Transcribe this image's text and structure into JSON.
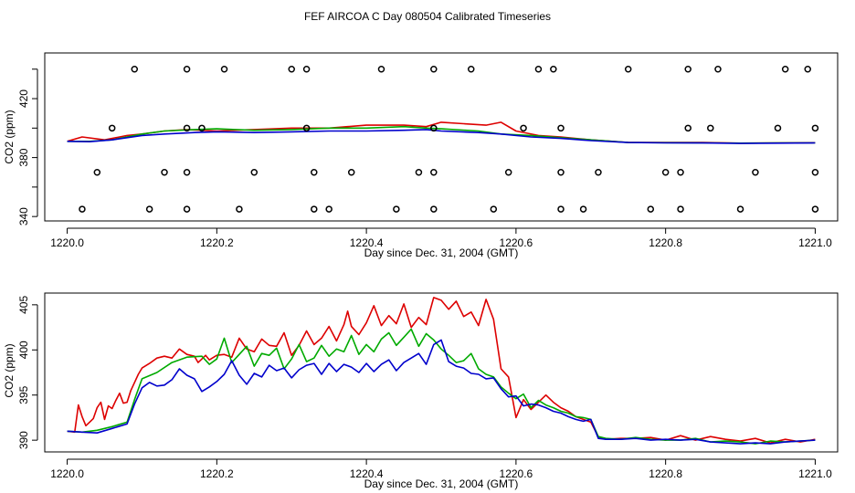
{
  "figure_title": "FEF AIRCOA C  Day 080504  Calibrated Timeseries",
  "chart_data": [
    {
      "type": "line",
      "title": "FEF AIRCOA C  Day 080504  Calibrated Timeseries",
      "xlabel": "Day since Dec. 31, 2004 (GMT)",
      "ylabel": "CO2 (ppm)",
      "xlim": [
        1219.97,
        1221.03
      ],
      "ylim": [
        337,
        451
      ],
      "xticks": [
        1220.0,
        1220.2,
        1220.4,
        1220.6,
        1220.8,
        1221.0
      ],
      "xtick_labels": [
        "1220.0",
        "1220.2",
        "1220.4",
        "1220.6",
        "1220.8",
        "1221.0"
      ],
      "yticks": [
        340,
        380,
        420
      ],
      "ytick_labels": [
        "340",
        "380",
        "420"
      ],
      "extra_ytick_positions": [
        360,
        400,
        440
      ],
      "grid": false,
      "series": [
        {
          "name": "red",
          "color": "#dd0000",
          "x": [
            1220.0,
            1220.02,
            1220.05,
            1220.08,
            1220.1,
            1220.13,
            1220.16,
            1220.2,
            1220.25,
            1220.3,
            1220.35,
            1220.4,
            1220.45,
            1220.48,
            1220.5,
            1220.53,
            1220.56,
            1220.58,
            1220.6,
            1220.63,
            1220.66,
            1220.7,
            1220.75,
            1220.8,
            1220.85,
            1220.9,
            1220.95,
            1221.0
          ],
          "values": [
            391,
            394,
            392,
            395,
            396,
            398,
            399,
            398,
            399,
            400,
            400,
            402,
            402,
            401,
            404,
            403,
            402,
            404,
            398,
            395,
            394,
            392,
            390.3,
            390.2,
            390.3,
            389.8,
            389.9,
            390.1
          ]
        },
        {
          "name": "green",
          "color": "#00aa00",
          "x": [
            1220.0,
            1220.03,
            1220.06,
            1220.1,
            1220.13,
            1220.17,
            1220.2,
            1220.25,
            1220.3,
            1220.35,
            1220.4,
            1220.45,
            1220.48,
            1220.5,
            1220.55,
            1220.58,
            1220.62,
            1220.66,
            1220.7,
            1220.75,
            1220.8,
            1220.85,
            1220.9,
            1220.95,
            1221.0
          ],
          "values": [
            391,
            391,
            392,
            396,
            398,
            399,
            399.5,
            398.5,
            399,
            400,
            400,
            401,
            400,
            399.5,
            398,
            396,
            395,
            393.5,
            392,
            390.2,
            390.1,
            390.0,
            389.8,
            389.9,
            390.0
          ]
        },
        {
          "name": "blue",
          "color": "#0000cc",
          "x": [
            1220.0,
            1220.03,
            1220.06,
            1220.1,
            1220.13,
            1220.17,
            1220.2,
            1220.25,
            1220.3,
            1220.35,
            1220.4,
            1220.45,
            1220.48,
            1220.5,
            1220.55,
            1220.58,
            1220.62,
            1220.66,
            1220.7,
            1220.75,
            1220.8,
            1220.85,
            1220.9,
            1220.95,
            1221.0
          ],
          "values": [
            391,
            390.8,
            392,
            395,
            396,
            397,
            397.5,
            397,
            397.5,
            398,
            398,
            398.5,
            399,
            398,
            397,
            396,
            394,
            393,
            391.5,
            390.2,
            390.0,
            389.9,
            389.6,
            389.8,
            390.0
          ]
        }
      ],
      "markers": {
        "style": "open-circle",
        "x_440": [
          1220.09,
          1220.16,
          1220.21,
          1220.3,
          1220.32,
          1220.42,
          1220.49,
          1220.54,
          1220.63,
          1220.65,
          1220.75,
          1220.83,
          1220.87,
          1220.96,
          1220.99
        ],
        "x_400": [
          1220.06,
          1220.16,
          1220.18,
          1220.32,
          1220.49,
          1220.61,
          1220.66,
          1220.83,
          1220.86,
          1220.95,
          1221.0
        ],
        "x_370": [
          1220.04,
          1220.13,
          1220.16,
          1220.25,
          1220.33,
          1220.38,
          1220.47,
          1220.49,
          1220.59,
          1220.66,
          1220.71,
          1220.8,
          1220.82,
          1220.92,
          1221.0
        ],
        "x_345": [
          1220.02,
          1220.11,
          1220.16,
          1220.23,
          1220.33,
          1220.35,
          1220.44,
          1220.49,
          1220.57,
          1220.66,
          1220.69,
          1220.78,
          1220.82,
          1220.9,
          1221.0
        ]
      }
    },
    {
      "type": "line",
      "title": "",
      "xlabel": "Day since Dec. 31, 2004 (GMT)",
      "ylabel": "CO2 (ppm)",
      "xlim": [
        1219.97,
        1221.03
      ],
      "ylim": [
        388.7,
        406.3
      ],
      "xticks": [
        1220.0,
        1220.2,
        1220.4,
        1220.6,
        1220.8,
        1221.0
      ],
      "xtick_labels": [
        "1220.0",
        "1220.2",
        "1220.4",
        "1220.6",
        "1220.8",
        "1221.0"
      ],
      "yticks": [
        390,
        395,
        400,
        405
      ],
      "ytick_labels": [
        "390",
        "395",
        "400",
        "405"
      ],
      "grid": false,
      "series": [
        {
          "name": "red",
          "color": "#dd0000",
          "x": [
            1220.0,
            1220.01,
            1220.015,
            1220.02,
            1220.025,
            1220.03,
            1220.035,
            1220.04,
            1220.045,
            1220.05,
            1220.055,
            1220.06,
            1220.065,
            1220.07,
            1220.075,
            1220.08,
            1220.085,
            1220.09,
            1220.095,
            1220.1,
            1220.11,
            1220.12,
            1220.13,
            1220.14,
            1220.15,
            1220.16,
            1220.17,
            1220.175,
            1220.18,
            1220.185,
            1220.19,
            1220.2,
            1220.21,
            1220.22,
            1220.23,
            1220.24,
            1220.25,
            1220.26,
            1220.27,
            1220.28,
            1220.29,
            1220.3,
            1220.31,
            1220.32,
            1220.33,
            1220.34,
            1220.35,
            1220.36,
            1220.37,
            1220.375,
            1220.38,
            1220.39,
            1220.4,
            1220.41,
            1220.42,
            1220.43,
            1220.44,
            1220.45,
            1220.46,
            1220.47,
            1220.48,
            1220.49,
            1220.5,
            1220.51,
            1220.52,
            1220.53,
            1220.54,
            1220.55,
            1220.56,
            1220.57,
            1220.58,
            1220.59,
            1220.6,
            1220.61,
            1220.62,
            1220.63,
            1220.64,
            1220.65,
            1220.66,
            1220.67,
            1220.68,
            1220.69,
            1220.7,
            1220.71,
            1220.72,
            1220.74,
            1220.76,
            1220.78,
            1220.8,
            1220.82,
            1220.84,
            1220.86,
            1220.88,
            1220.9,
            1220.92,
            1220.94,
            1220.96,
            1220.98,
            1221.0
          ],
          "values": [
            391.0,
            390.9,
            393.9,
            392.6,
            391.6,
            392.0,
            392.4,
            393.6,
            394.2,
            392.3,
            393.8,
            393.5,
            394.4,
            395.2,
            394.1,
            394.2,
            395.5,
            396.4,
            397.3,
            398.0,
            398.5,
            399.1,
            399.3,
            399.1,
            400.1,
            399.5,
            399.3,
            398.6,
            399.0,
            399.4,
            398.9,
            399.4,
            399.5,
            399.2,
            401.3,
            400.1,
            399.8,
            401.2,
            400.5,
            400.4,
            401.9,
            399.4,
            400.5,
            402.1,
            400.6,
            401.3,
            402.6,
            401.0,
            402.8,
            404.3,
            402.6,
            401.7,
            403.0,
            404.9,
            402.7,
            403.8,
            402.9,
            405.1,
            402.5,
            403.6,
            402.8,
            405.8,
            405.5,
            404.5,
            405.4,
            403.7,
            404.2,
            402.7,
            405.6,
            403.4,
            397.9,
            397.0,
            392.5,
            394.5,
            393.4,
            394.2,
            395.0,
            394.2,
            393.6,
            393.2,
            392.6,
            392.3,
            392.0,
            390.4,
            390.1,
            390.2,
            390.2,
            390.3,
            390.0,
            390.5,
            390.0,
            390.4,
            390.1,
            389.9,
            390.2,
            389.7,
            390.1,
            389.8,
            390.1
          ]
        },
        {
          "name": "green",
          "color": "#00aa00",
          "x": [
            1220.0,
            1220.02,
            1220.04,
            1220.06,
            1220.08,
            1220.09,
            1220.1,
            1220.12,
            1220.14,
            1220.16,
            1220.18,
            1220.19,
            1220.2,
            1220.21,
            1220.22,
            1220.23,
            1220.24,
            1220.25,
            1220.26,
            1220.27,
            1220.28,
            1220.29,
            1220.3,
            1220.31,
            1220.32,
            1220.33,
            1220.34,
            1220.35,
            1220.36,
            1220.37,
            1220.38,
            1220.39,
            1220.4,
            1220.41,
            1220.42,
            1220.43,
            1220.44,
            1220.45,
            1220.46,
            1220.47,
            1220.48,
            1220.49,
            1220.5,
            1220.51,
            1220.52,
            1220.53,
            1220.54,
            1220.55,
            1220.56,
            1220.57,
            1220.58,
            1220.59,
            1220.6,
            1220.61,
            1220.62,
            1220.63,
            1220.64,
            1220.65,
            1220.66,
            1220.67,
            1220.68,
            1220.69,
            1220.7,
            1220.71,
            1220.72,
            1220.74,
            1220.76,
            1220.78,
            1220.8,
            1220.82,
            1220.84,
            1220.86,
            1220.88,
            1220.9,
            1220.92,
            1220.94,
            1220.96,
            1220.98,
            1221.0
          ],
          "values": [
            391.0,
            390.9,
            391.1,
            391.5,
            392.0,
            394.5,
            396.8,
            397.5,
            398.6,
            399.2,
            399.3,
            398.4,
            399.0,
            401.3,
            398.6,
            399.5,
            400.4,
            398.2,
            399.6,
            399.4,
            400.2,
            397.9,
            399.0,
            400.6,
            398.7,
            399.1,
            400.5,
            399.3,
            400.1,
            399.8,
            401.6,
            399.5,
            400.6,
            399.8,
            401.2,
            401.9,
            400.5,
            401.4,
            402.3,
            400.4,
            401.8,
            401.1,
            400.1,
            399.4,
            398.6,
            398.8,
            399.6,
            397.9,
            397.3,
            397.0,
            395.9,
            395.2,
            394.6,
            395.1,
            393.6,
            394.4,
            393.9,
            393.6,
            393.2,
            393.0,
            392.6,
            392.5,
            392.3,
            390.4,
            390.2,
            390.1,
            390.3,
            390.1,
            390.0,
            390.0,
            390.2,
            389.8,
            389.9,
            389.8,
            389.6,
            389.9,
            389.8,
            389.9,
            390.0
          ]
        },
        {
          "name": "blue",
          "color": "#0000cc",
          "x": [
            1220.0,
            1220.02,
            1220.04,
            1220.06,
            1220.08,
            1220.09,
            1220.1,
            1220.11,
            1220.12,
            1220.13,
            1220.14,
            1220.15,
            1220.16,
            1220.17,
            1220.18,
            1220.19,
            1220.2,
            1220.21,
            1220.22,
            1220.23,
            1220.24,
            1220.25,
            1220.26,
            1220.27,
            1220.28,
            1220.29,
            1220.3,
            1220.31,
            1220.32,
            1220.33,
            1220.34,
            1220.35,
            1220.36,
            1220.37,
            1220.38,
            1220.39,
            1220.4,
            1220.41,
            1220.42,
            1220.43,
            1220.44,
            1220.45,
            1220.46,
            1220.47,
            1220.48,
            1220.49,
            1220.5,
            1220.51,
            1220.52,
            1220.53,
            1220.54,
            1220.55,
            1220.56,
            1220.57,
            1220.58,
            1220.59,
            1220.6,
            1220.61,
            1220.62,
            1220.63,
            1220.64,
            1220.65,
            1220.66,
            1220.67,
            1220.68,
            1220.69,
            1220.7,
            1220.71,
            1220.72,
            1220.74,
            1220.76,
            1220.78,
            1220.8,
            1220.82,
            1220.84,
            1220.86,
            1220.88,
            1220.9,
            1220.92,
            1220.94,
            1220.96,
            1220.98,
            1221.0
          ],
          "values": [
            391.0,
            390.9,
            390.8,
            391.3,
            391.8,
            394.0,
            395.8,
            396.4,
            396.0,
            396.1,
            396.7,
            397.9,
            397.2,
            396.8,
            395.4,
            395.9,
            396.5,
            397.3,
            398.8,
            397.2,
            396.2,
            397.4,
            397.0,
            398.3,
            397.7,
            398.0,
            396.9,
            397.8,
            398.3,
            398.5,
            397.3,
            398.5,
            397.6,
            398.4,
            398.1,
            397.5,
            398.5,
            397.6,
            398.4,
            398.9,
            397.7,
            398.6,
            399.1,
            399.6,
            398.4,
            400.6,
            401.1,
            398.7,
            398.2,
            398.0,
            397.4,
            397.3,
            396.8,
            396.9,
            395.7,
            394.8,
            394.9,
            393.8,
            394.0,
            393.9,
            393.6,
            393.2,
            393.0,
            392.6,
            392.3,
            392.1,
            392.3,
            390.2,
            390.1,
            390.1,
            390.2,
            390.0,
            390.1,
            390.0,
            390.1,
            389.8,
            389.7,
            389.6,
            389.7,
            389.6,
            389.8,
            389.9,
            390.0
          ]
        }
      ]
    }
  ]
}
